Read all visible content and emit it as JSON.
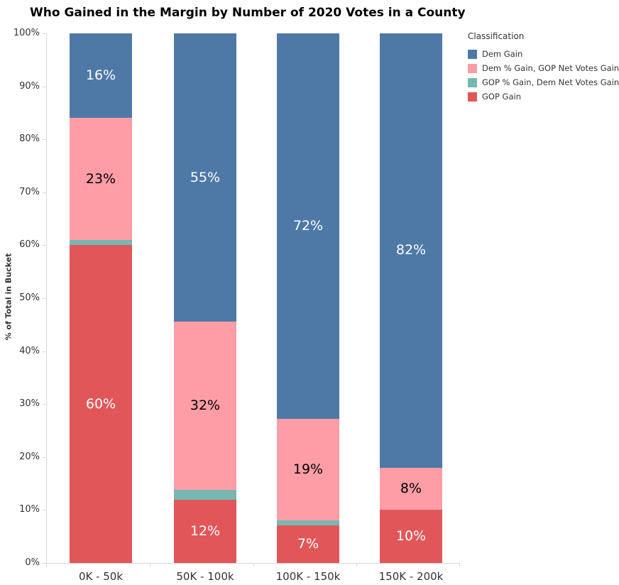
{
  "chart_data": {
    "type": "bar",
    "subtype": "100%-stacked-vertical",
    "title": "Who Gained in the Margin by Number of 2020 Votes in a County",
    "xlabel": "",
    "ylabel": "% of Total in Bucket",
    "ylim": [
      0,
      100
    ],
    "ytick_labels": [
      "0%",
      "10%",
      "20%",
      "30%",
      "40%",
      "50%",
      "60%",
      "70%",
      "80%",
      "90%",
      "100%"
    ],
    "categories": [
      "0K - 50k",
      "50K - 100k",
      "100K - 150k",
      "150K - 200k"
    ],
    "legend_title": "Classification",
    "legend_position": "top-right",
    "grid": false,
    "series": [
      {
        "name": "Dem Gain",
        "color": "#4e79a7",
        "label_text_color": "#ffffff",
        "values": [
          16,
          55,
          72,
          82
        ],
        "labels": [
          "16%",
          "55%",
          "72%",
          "82%"
        ]
      },
      {
        "name": "Dem % Gain, GOP Net Votes Gain",
        "color": "#ff9da7",
        "label_text_color": "#000000",
        "values": [
          23,
          32,
          19,
          8
        ],
        "labels": [
          "23%",
          "32%",
          "19%",
          "8%"
        ]
      },
      {
        "name": "GOP % Gain, Dem Net Votes Gain",
        "color": "#76b7b2",
        "label_text_color": "#000000",
        "values": [
          1,
          2,
          1,
          0
        ],
        "labels": [
          "",
          "",
          "",
          ""
        ]
      },
      {
        "name": "GOP Gain",
        "color": "#e15759",
        "label_text_color": "#ffffff",
        "values": [
          60,
          12,
          7,
          10
        ],
        "labels": [
          "60%",
          "12%",
          "7%",
          "10%"
        ]
      }
    ],
    "colors": {
      "axis_line": "#d7d7d7",
      "tick_text": "#333333",
      "title_text": "#000000",
      "background": "#ffffff"
    }
  }
}
